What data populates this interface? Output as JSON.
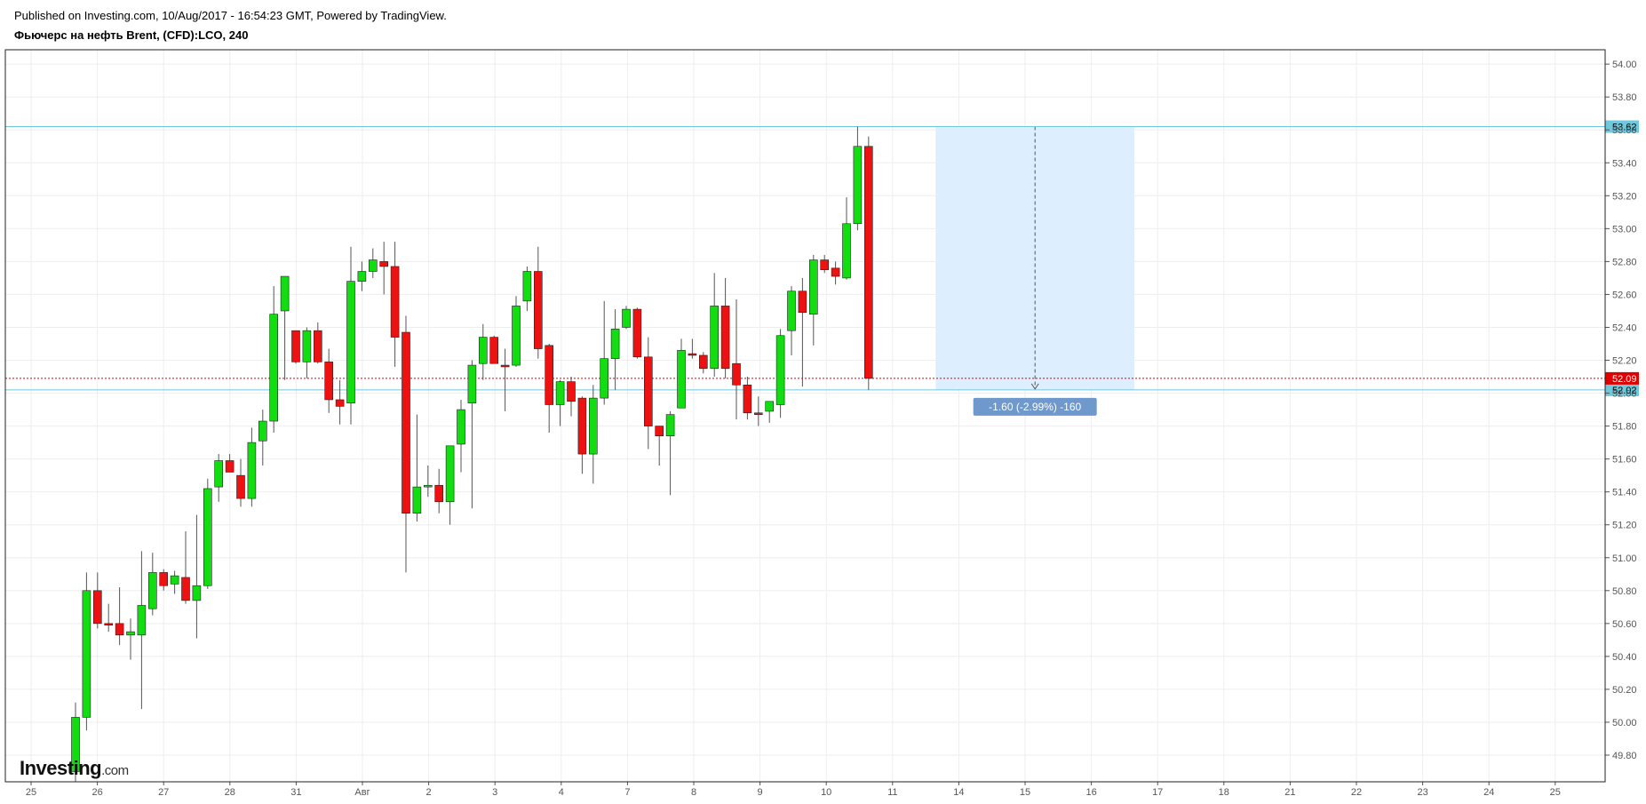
{
  "header": {
    "published": "Published on Investing.com, 10/Aug/2017 - 16:54:23 GMT, Powered by TradingView.",
    "symbol": "Фьючерс на нефть Brent, (CFD):LCO, 240"
  },
  "logo": {
    "main": "Investing",
    "suffix": ".com"
  },
  "colors": {
    "up": "#11dd11",
    "down": "#ee1111",
    "wick": "#555555",
    "grid": "#eeeeee",
    "h_line": "#6fc8dc",
    "current": "#e00000",
    "range_fill": "#ddeeff",
    "measure_label_bg": "#6f98cc"
  },
  "chart_data": {
    "type": "candlestick",
    "title": "Фьючерс на нефть Brent, (CFD):LCO, 240",
    "ylim": [
      49.7,
      54.1
    ],
    "y_ticks": [
      "54.00",
      "53.80",
      "53.60",
      "53.40",
      "53.20",
      "53.00",
      "52.80",
      "52.60",
      "52.40",
      "52.20",
      "52.00",
      "51.80",
      "51.60",
      "51.40",
      "51.20",
      "51.00",
      "50.80",
      "50.60",
      "50.40",
      "50.20",
      "50.00",
      "49.80"
    ],
    "x_ticks": [
      "25",
      "26",
      "27",
      "28",
      "31",
      "Авг",
      "2",
      "3",
      "4",
      "7",
      "8",
      "9",
      "10",
      "11",
      "14",
      "15",
      "16",
      "17",
      "18",
      "21",
      "22",
      "23",
      "24",
      "25"
    ],
    "grid": true,
    "horizontal_lines": [
      {
        "label": "53.62",
        "value": 53.62
      },
      {
        "label": "52.02",
        "value": 52.02
      }
    ],
    "current_price": {
      "label": "52.09",
      "value": 52.09
    },
    "price_range": {
      "from_tick": 13.65,
      "to_tick": 16.65,
      "top": 53.62,
      "bottom": 52.02,
      "label": "-1.60 (-2.99%) -160"
    },
    "candles": [
      {
        "o": 49.7,
        "h": 50.12,
        "l": 49.6,
        "c": 50.03
      },
      {
        "o": 50.03,
        "h": 50.91,
        "l": 49.95,
        "c": 50.8
      },
      {
        "o": 50.8,
        "h": 50.91,
        "l": 50.57,
        "c": 50.6
      },
      {
        "o": 50.6,
        "h": 50.72,
        "l": 50.55,
        "c": 50.59
      },
      {
        "o": 50.6,
        "h": 50.82,
        "l": 50.47,
        "c": 50.53
      },
      {
        "o": 50.53,
        "h": 50.63,
        "l": 50.38,
        "c": 50.55
      },
      {
        "o": 50.53,
        "h": 51.04,
        "l": 50.08,
        "c": 50.71
      },
      {
        "o": 50.69,
        "h": 51.03,
        "l": 50.65,
        "c": 50.91
      },
      {
        "o": 50.91,
        "h": 50.93,
        "l": 50.8,
        "c": 50.83
      },
      {
        "o": 50.84,
        "h": 50.92,
        "l": 50.78,
        "c": 50.89
      },
      {
        "o": 50.88,
        "h": 51.16,
        "l": 50.72,
        "c": 50.74
      },
      {
        "o": 50.74,
        "h": 51.26,
        "l": 50.51,
        "c": 50.83
      },
      {
        "o": 50.83,
        "h": 51.48,
        "l": 50.81,
        "c": 51.42
      },
      {
        "o": 51.43,
        "h": 51.63,
        "l": 51.34,
        "c": 51.59
      },
      {
        "o": 51.59,
        "h": 51.63,
        "l": 51.52,
        "c": 51.52
      },
      {
        "o": 51.5,
        "h": 51.6,
        "l": 51.31,
        "c": 51.36
      },
      {
        "o": 51.36,
        "h": 51.79,
        "l": 51.31,
        "c": 51.7
      },
      {
        "o": 51.71,
        "h": 51.9,
        "l": 51.56,
        "c": 51.83
      },
      {
        "o": 51.83,
        "h": 52.65,
        "l": 51.76,
        "c": 52.48
      },
      {
        "o": 52.5,
        "h": 52.71,
        "l": 52.08,
        "c": 52.71
      },
      {
        "o": 52.38,
        "h": 52.38,
        "l": 52.18,
        "c": 52.19
      },
      {
        "o": 52.19,
        "h": 52.4,
        "l": 52.09,
        "c": 52.38
      },
      {
        "o": 52.38,
        "h": 52.43,
        "l": 52.18,
        "c": 52.19
      },
      {
        "o": 52.19,
        "h": 52.27,
        "l": 51.88,
        "c": 51.96
      },
      {
        "o": 51.96,
        "h": 52.08,
        "l": 51.81,
        "c": 51.92
      },
      {
        "o": 51.94,
        "h": 52.89,
        "l": 51.81,
        "c": 52.68
      },
      {
        "o": 52.68,
        "h": 52.8,
        "l": 52.62,
        "c": 52.74
      },
      {
        "o": 52.74,
        "h": 52.88,
        "l": 52.7,
        "c": 52.81
      },
      {
        "o": 52.8,
        "h": 52.92,
        "l": 52.6,
        "c": 52.77
      },
      {
        "o": 52.77,
        "h": 52.92,
        "l": 52.16,
        "c": 52.34
      },
      {
        "o": 52.37,
        "h": 52.47,
        "l": 50.91,
        "c": 51.27
      },
      {
        "o": 51.27,
        "h": 51.87,
        "l": 51.22,
        "c": 51.43
      },
      {
        "o": 51.43,
        "h": 51.56,
        "l": 51.37,
        "c": 51.44
      },
      {
        "o": 51.44,
        "h": 51.54,
        "l": 51.27,
        "c": 51.34
      },
      {
        "o": 51.34,
        "h": 51.68,
        "l": 51.2,
        "c": 51.68
      },
      {
        "o": 51.69,
        "h": 51.96,
        "l": 51.52,
        "c": 51.9
      },
      {
        "o": 51.94,
        "h": 52.2,
        "l": 51.3,
        "c": 52.17
      },
      {
        "o": 52.18,
        "h": 52.42,
        "l": 52.08,
        "c": 52.34
      },
      {
        "o": 52.34,
        "h": 52.35,
        "l": 52.18,
        "c": 52.18
      },
      {
        "o": 52.17,
        "h": 52.27,
        "l": 51.89,
        "c": 52.16
      },
      {
        "o": 52.17,
        "h": 52.59,
        "l": 52.16,
        "c": 52.53
      },
      {
        "o": 52.56,
        "h": 52.77,
        "l": 52.5,
        "c": 52.74
      },
      {
        "o": 52.74,
        "h": 52.89,
        "l": 52.21,
        "c": 52.27
      },
      {
        "o": 52.29,
        "h": 52.3,
        "l": 51.76,
        "c": 51.93
      },
      {
        "o": 51.93,
        "h": 52.08,
        "l": 51.8,
        "c": 52.07
      },
      {
        "o": 52.07,
        "h": 52.1,
        "l": 51.86,
        "c": 51.95
      },
      {
        "o": 51.97,
        "h": 51.98,
        "l": 51.51,
        "c": 51.63
      },
      {
        "o": 51.63,
        "h": 52.05,
        "l": 51.45,
        "c": 51.97
      },
      {
        "o": 51.97,
        "h": 52.56,
        "l": 51.93,
        "c": 52.21
      },
      {
        "o": 52.21,
        "h": 52.51,
        "l": 52.02,
        "c": 52.39
      },
      {
        "o": 52.4,
        "h": 52.53,
        "l": 52.39,
        "c": 52.51
      },
      {
        "o": 52.51,
        "h": 52.52,
        "l": 52.21,
        "c": 52.22
      },
      {
        "o": 52.22,
        "h": 52.34,
        "l": 51.66,
        "c": 51.8
      },
      {
        "o": 51.8,
        "h": 51.8,
        "l": 51.56,
        "c": 51.74
      },
      {
        "o": 51.74,
        "h": 51.89,
        "l": 51.38,
        "c": 51.87
      },
      {
        "o": 51.91,
        "h": 52.33,
        "l": 51.91,
        "c": 52.26
      },
      {
        "o": 52.24,
        "h": 52.33,
        "l": 52.21,
        "c": 52.23
      },
      {
        "o": 52.23,
        "h": 52.25,
        "l": 52.12,
        "c": 52.15
      },
      {
        "o": 52.15,
        "h": 52.73,
        "l": 52.1,
        "c": 52.53
      },
      {
        "o": 52.53,
        "h": 52.7,
        "l": 52.09,
        "c": 52.15
      },
      {
        "o": 52.18,
        "h": 52.57,
        "l": 51.84,
        "c": 52.05
      },
      {
        "o": 52.05,
        "h": 52.1,
        "l": 51.84,
        "c": 51.88
      },
      {
        "o": 51.88,
        "h": 51.98,
        "l": 51.8,
        "c": 51.87
      },
      {
        "o": 51.89,
        "h": 51.95,
        "l": 51.82,
        "c": 51.95
      },
      {
        "o": 51.93,
        "h": 52.39,
        "l": 51.85,
        "c": 52.35
      },
      {
        "o": 52.38,
        "h": 52.65,
        "l": 52.23,
        "c": 52.62
      },
      {
        "o": 52.62,
        "h": 52.7,
        "l": 52.04,
        "c": 52.49
      },
      {
        "o": 52.48,
        "h": 52.84,
        "l": 52.29,
        "c": 52.81
      },
      {
        "o": 52.81,
        "h": 52.84,
        "l": 52.73,
        "c": 52.75
      },
      {
        "o": 52.76,
        "h": 52.8,
        "l": 52.66,
        "c": 52.71
      },
      {
        "o": 52.7,
        "h": 53.19,
        "l": 52.69,
        "c": 53.03
      },
      {
        "o": 53.03,
        "h": 53.62,
        "l": 52.99,
        "c": 53.5
      },
      {
        "o": 53.5,
        "h": 53.56,
        "l": 52.02,
        "c": 52.09
      }
    ]
  }
}
